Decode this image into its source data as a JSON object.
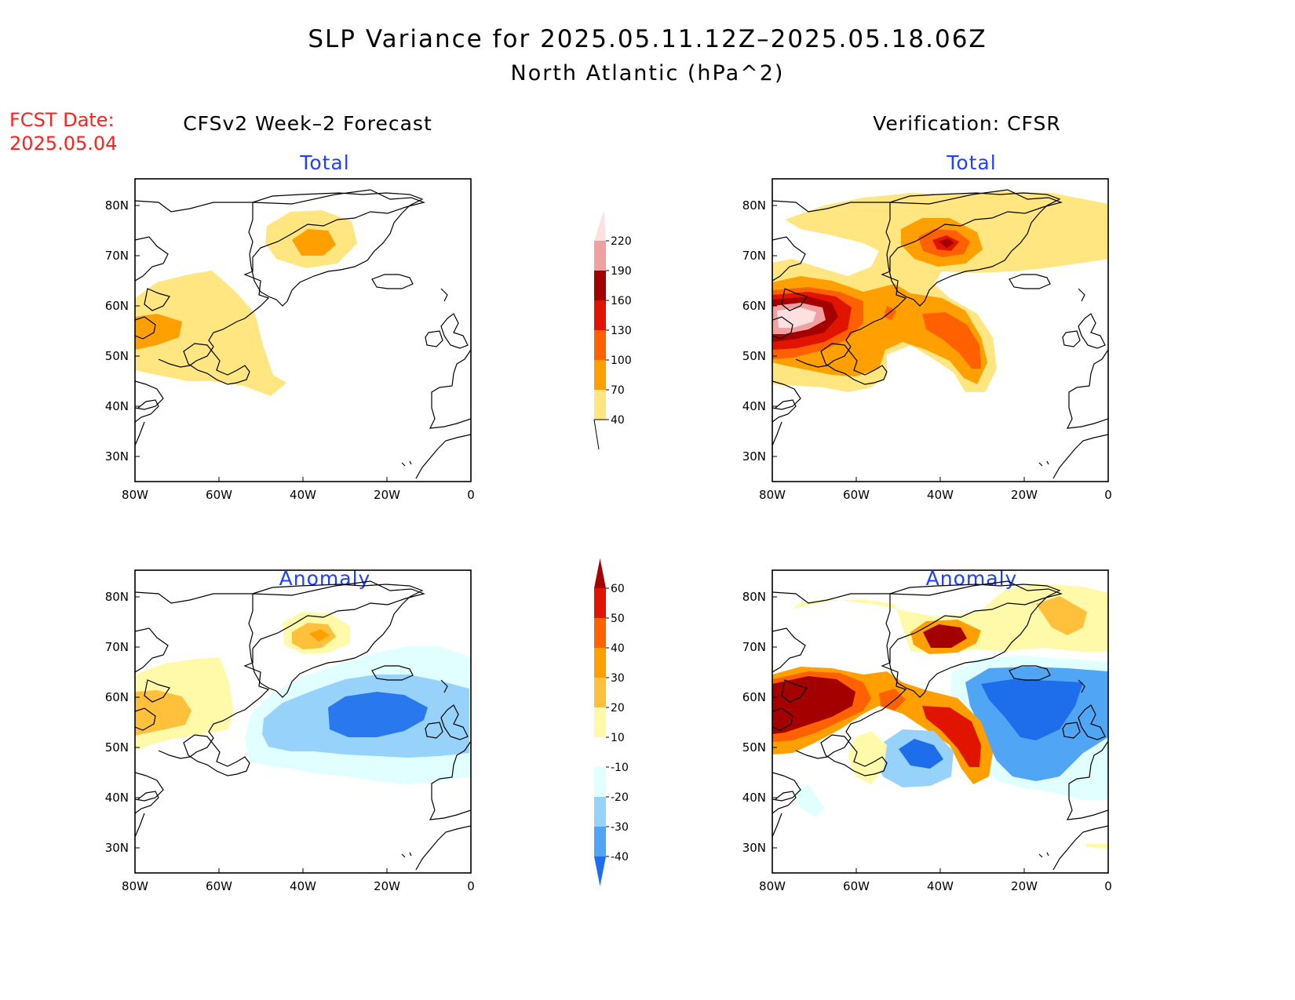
{
  "title": {
    "line1": "SLP Variance for 2025.05.11.12Z–2025.05.18.06Z",
    "line2": "North Atlantic (hPa^2)"
  },
  "forecast_date": {
    "label": "FCST Date:",
    "value": "2025.05.04"
  },
  "columns": {
    "left": "CFSv2 Week–2 Forecast",
    "right": "Verification: CFSR"
  },
  "panels": {
    "total_label": "Total",
    "anomaly_label": "Anomaly"
  },
  "axes": {
    "lat_labels": [
      "80N",
      "70N",
      "60N",
      "50N",
      "40N",
      "30N"
    ],
    "lon_labels": [
      "80W",
      "60W",
      "40W",
      "20W",
      "0"
    ]
  },
  "colorbar_total": {
    "levels": [
      "40",
      "70",
      "100",
      "130",
      "160",
      "190",
      "220"
    ],
    "colors": [
      "#ffe680",
      "#ffa000",
      "#ff6000",
      "#e11400",
      "#a50000",
      "#f0a0a0",
      "#ffe0e0"
    ]
  },
  "colorbar_anomaly": {
    "levels": [
      "-40",
      "-30",
      "-20",
      "-10",
      "10",
      "20",
      "30",
      "40",
      "50",
      "60"
    ],
    "colors": [
      "#1e6eeb",
      "#50a5f5",
      "#96d2fa",
      "#e1ffff",
      "#ffffff",
      "#fffaaa",
      "#ffc03c",
      "#ffa000",
      "#ff6000",
      "#e11400",
      "#a50000"
    ]
  }
}
